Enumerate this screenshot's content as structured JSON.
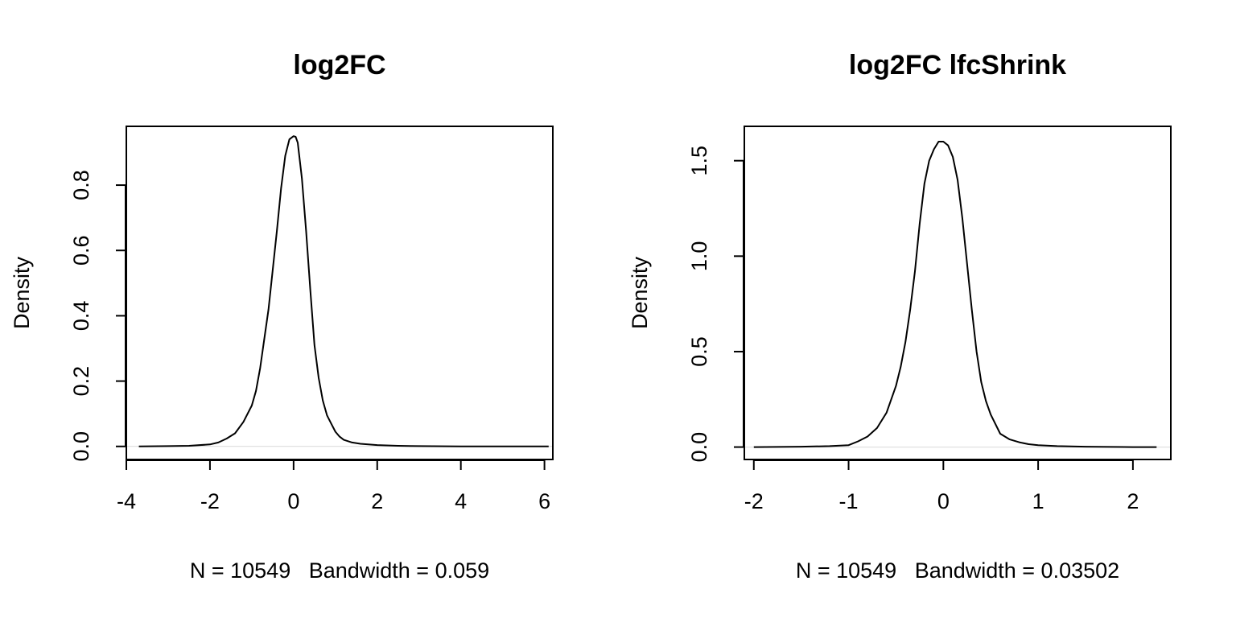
{
  "chart_data": [
    {
      "type": "line",
      "title": "log2FC",
      "ylabel": "Density",
      "xlabel": "N = 10549   Bandwidth = 0.059",
      "xlim": [
        -4.0,
        6.2
      ],
      "ylim": [
        -0.04,
        0.98
      ],
      "xticks": [
        -4,
        -2,
        0,
        2,
        4,
        6
      ],
      "xtick_labels": [
        "-4",
        "-2",
        "0",
        "2",
        "4",
        "6"
      ],
      "yticks": [
        0.0,
        0.2,
        0.4,
        0.6,
        0.8
      ],
      "ytick_labels": [
        "0.0",
        "0.2",
        "0.4",
        "0.6",
        "0.8"
      ],
      "zero_line": true,
      "series": [
        {
          "x": [
            -3.7,
            -3.0,
            -2.5,
            -2.0,
            -1.8,
            -1.6,
            -1.4,
            -1.2,
            -1.0,
            -0.9,
            -0.8,
            -0.7,
            -0.6,
            -0.5,
            -0.4,
            -0.3,
            -0.2,
            -0.1,
            0.0,
            0.05,
            0.1,
            0.2,
            0.3,
            0.4,
            0.5,
            0.6,
            0.7,
            0.8,
            0.9,
            1.0,
            1.1,
            1.2,
            1.4,
            1.6,
            2.0,
            2.5,
            3.0,
            4.0,
            5.0,
            6.1
          ],
          "y": [
            0.0,
            0.001,
            0.002,
            0.006,
            0.012,
            0.024,
            0.04,
            0.075,
            0.125,
            0.17,
            0.24,
            0.33,
            0.42,
            0.54,
            0.66,
            0.79,
            0.89,
            0.94,
            0.95,
            0.948,
            0.93,
            0.82,
            0.66,
            0.48,
            0.31,
            0.21,
            0.14,
            0.095,
            0.07,
            0.045,
            0.03,
            0.02,
            0.012,
            0.008,
            0.004,
            0.002,
            0.001,
            0.0,
            0.0,
            0.0
          ]
        }
      ]
    },
    {
      "type": "line",
      "title": "log2FC lfcShrink",
      "ylabel": "Density",
      "xlabel": "N = 10549   Bandwidth = 0.03502",
      "xlim": [
        -2.1,
        2.4
      ],
      "ylim": [
        -0.065,
        1.68
      ],
      "xticks": [
        -2,
        -1,
        0,
        1,
        2
      ],
      "xtick_labels": [
        "-2",
        "-1",
        "0",
        "1",
        "2"
      ],
      "yticks": [
        0.0,
        0.5,
        1.0,
        1.5
      ],
      "ytick_labels": [
        "0.0",
        "0.5",
        "1.0",
        "1.5"
      ],
      "zero_line": true,
      "series": [
        {
          "x": [
            -2.0,
            -1.5,
            -1.2,
            -1.0,
            -0.9,
            -0.8,
            -0.7,
            -0.6,
            -0.5,
            -0.45,
            -0.4,
            -0.35,
            -0.3,
            -0.25,
            -0.2,
            -0.15,
            -0.1,
            -0.05,
            0.0,
            0.05,
            0.1,
            0.15,
            0.2,
            0.25,
            0.3,
            0.35,
            0.4,
            0.45,
            0.5,
            0.6,
            0.7,
            0.8,
            0.9,
            1.0,
            1.2,
            1.5,
            2.0,
            2.25
          ],
          "y": [
            0.0,
            0.002,
            0.005,
            0.01,
            0.03,
            0.055,
            0.1,
            0.18,
            0.32,
            0.42,
            0.55,
            0.72,
            0.92,
            1.17,
            1.38,
            1.5,
            1.56,
            1.6,
            1.6,
            1.58,
            1.52,
            1.4,
            1.2,
            0.96,
            0.72,
            0.5,
            0.34,
            0.24,
            0.17,
            0.07,
            0.04,
            0.025,
            0.015,
            0.01,
            0.005,
            0.002,
            0.0,
            0.0
          ]
        }
      ]
    }
  ]
}
